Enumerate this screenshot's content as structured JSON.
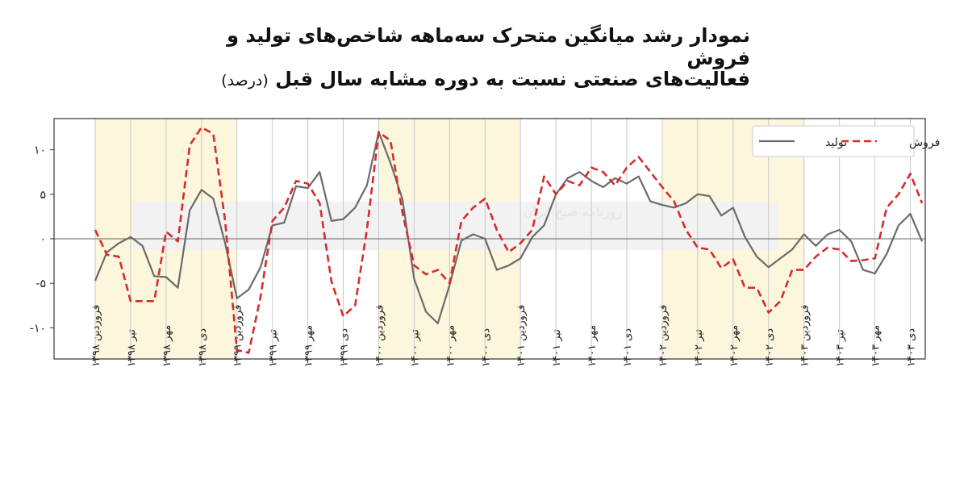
{
  "chart_data": {
    "type": "line",
    "title_line1": "نمودار رشد میانگین متحرک سه‌ماهه شاخص‌های تولید و فروش",
    "title_line2": "فعالیت‌های صنعتی نسبت به دوره مشابه سال قبل",
    "title_unit": "(درصد)",
    "watermark": "روزنامه صبح ایران",
    "xlabel": "",
    "ylabel": "",
    "ylim": [
      -13.5,
      13.5
    ],
    "yticks": [
      -10,
      -5,
      0,
      5,
      10
    ],
    "ytick_labels": [
      "-۱۰",
      "-۵",
      "۰",
      "۵",
      "۱۰"
    ],
    "zero_line": true,
    "grid": "vertical",
    "legend_position": "top-right",
    "shaded_years": [
      "۱۳۹۸",
      "۱۴۰۰",
      "۱۴۰۲"
    ],
    "x_tick_labels": [
      "فروردین ۱۳۹۸",
      "تیر ۱۳۹۸",
      "مهر ۱۳۹۸",
      "دی ۱۳۹۸",
      "فروردین ۱۳۹۹",
      "تیر ۱۳۹۹",
      "مهر ۱۳۹۹",
      "دی ۱۳۹۹",
      "فروردین ۱۴۰۰",
      "تیر ۱۴۰۰",
      "مهر ۱۴۰۰",
      "دی ۱۴۰۰",
      "فروردین ۱۴۰۱",
      "تیر ۱۴۰۱",
      "مهر ۱۴۰۱",
      "دی ۱۴۰۱",
      "فروردین ۱۴۰۲",
      "تیر ۱۴۰۲",
      "مهر ۱۴۰۲",
      "دی ۱۴۰۲",
      "فروردین ۱۴۰۳",
      "تیر ۱۴۰۳",
      "مهر ۱۴۰۳",
      "دی ۱۴۰۳"
    ],
    "series": [
      {
        "name": "تولید",
        "color": "#6b6b6b",
        "style": "solid",
        "values": [
          -4.7,
          -1.5,
          -0.5,
          0.2,
          -0.8,
          -4.2,
          -4.3,
          -5.5,
          3.2,
          5.5,
          4.5,
          -0.5,
          -6.7,
          -5.7,
          -3.2,
          1.5,
          1.8,
          5.9,
          5.7,
          7.5,
          2.0,
          2.2,
          3.5,
          6.0,
          12.0,
          8.5,
          4.5,
          -4.5,
          -8.2,
          -9.5,
          -5.2,
          -0.2,
          0.5,
          0.0,
          -3.5,
          -3.0,
          -2.2,
          0.2,
          1.5,
          5.0,
          6.8,
          7.5,
          6.5,
          5.8,
          6.8,
          6.2,
          7.0,
          4.2,
          3.8,
          3.5,
          4.0,
          5.0,
          4.8,
          2.6,
          3.5,
          0.2,
          -2.0,
          -3.2,
          -2.2,
          -1.2,
          0.5,
          -0.8,
          0.5,
          1.0,
          -0.3,
          -3.5,
          -3.9,
          -1.7,
          1.5,
          2.8,
          -0.3
        ]
      },
      {
        "name": "فروش",
        "color": "#d62c2c",
        "style": "dashed",
        "values": [
          1.0,
          -1.8,
          -2.0,
          -7.0,
          -7.0,
          -7.0,
          0.8,
          -0.3,
          10.5,
          12.5,
          11.8,
          2.0,
          -12.5,
          -12.8,
          -6.5,
          2.0,
          3.5,
          6.5,
          6.2,
          4.0,
          -4.8,
          -8.7,
          -7.5,
          1.0,
          12.0,
          11.0,
          3.0,
          -3.0,
          -4.0,
          -3.5,
          -5.0,
          2.0,
          3.5,
          4.5,
          1.0,
          -1.5,
          -0.5,
          1.0,
          7.0,
          5.0,
          6.5,
          6.0,
          8.0,
          7.5,
          6.0,
          8.0,
          9.2,
          7.5,
          5.8,
          4.2,
          1.0,
          -1.0,
          -1.2,
          -3.3,
          -2.3,
          -5.5,
          -5.5,
          -8.3,
          -7.0,
          -3.5,
          -3.5,
          -2.0,
          -1.0,
          -1.2,
          -2.5,
          -2.4,
          -2.2,
          3.5,
          5.0,
          7.3,
          4.0
        ]
      }
    ]
  }
}
